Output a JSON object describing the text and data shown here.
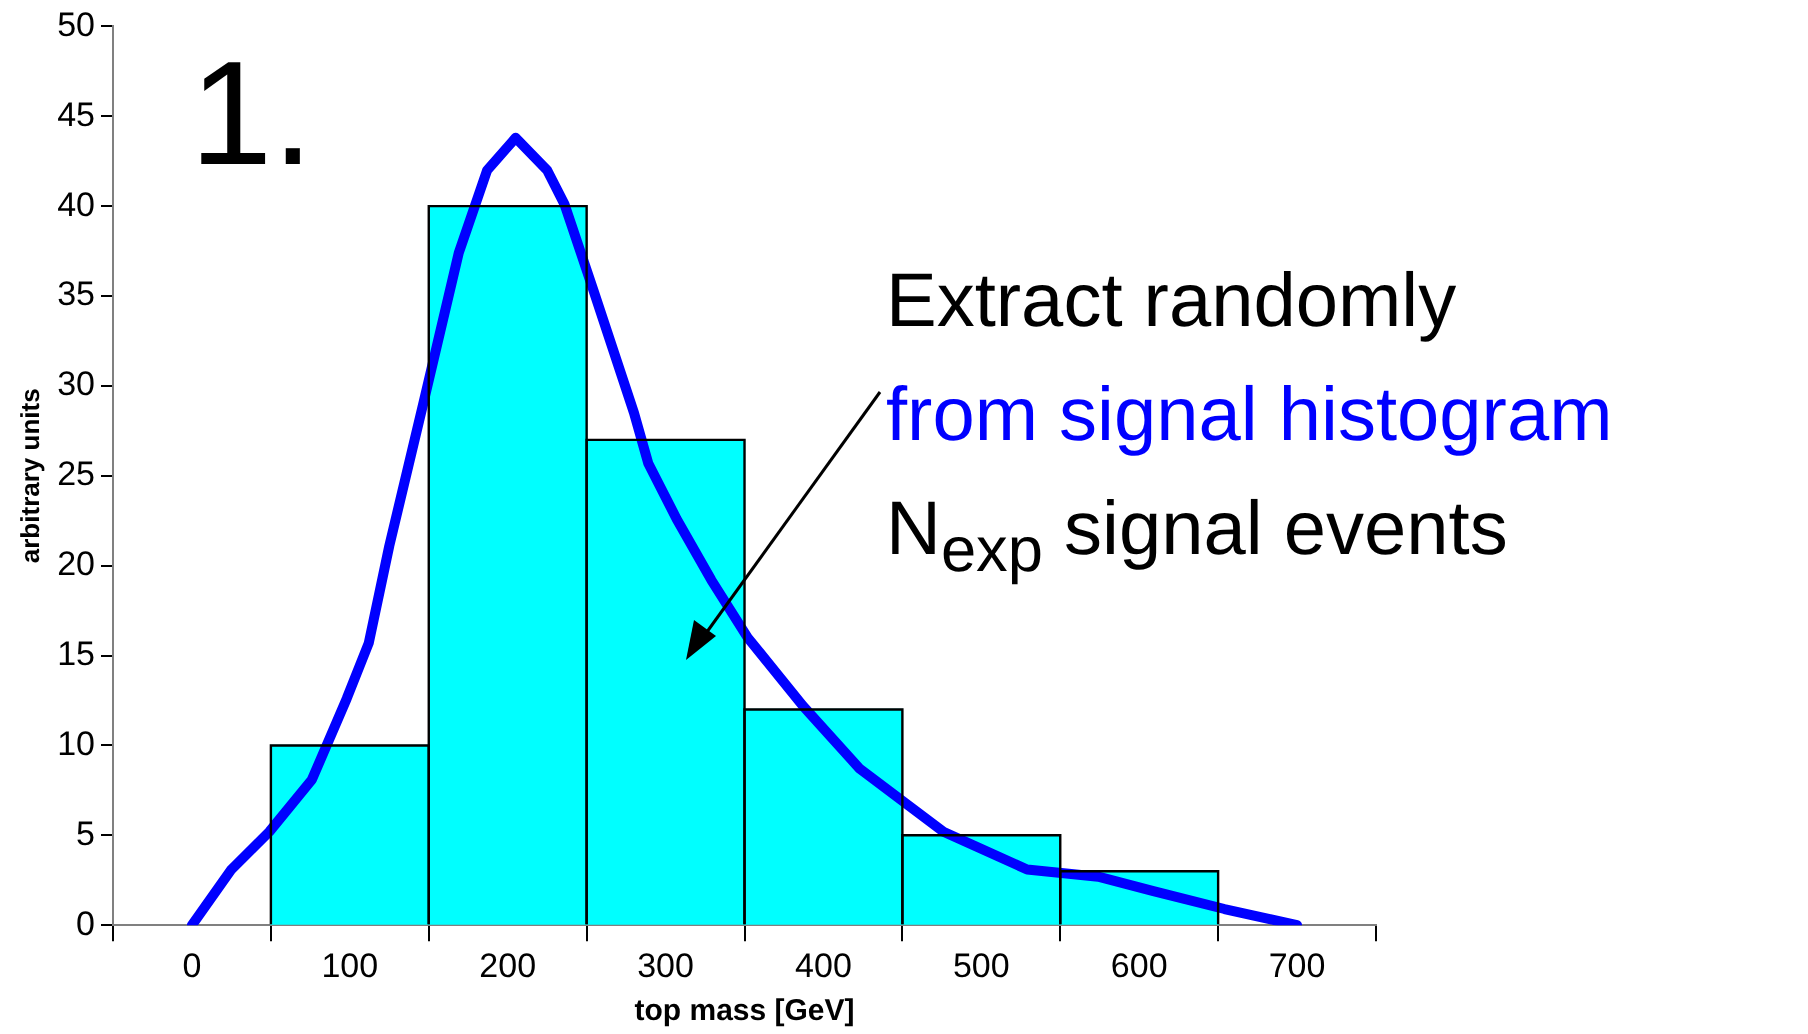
{
  "chart_data": {
    "type": "histogram",
    "xlabel": "top mass [GeV]",
    "ylabel": "arbitrary units",
    "bins": [
      50,
      150,
      250,
      350,
      450,
      550,
      650
    ],
    "values": [
      10,
      40,
      27,
      12,
      5,
      3
    ],
    "color": "#00ffff",
    "series": [
      {
        "type": "line",
        "color": "#0000ff",
        "x": [
          0,
          25,
          49,
          76,
          98,
          112,
          125,
          147,
          169,
          187,
          205,
          225,
          236,
          254,
          280,
          289,
          307,
          329,
          352,
          387,
          423,
          476,
          529,
          574,
          609,
          654,
          700
        ],
        "values": [
          0,
          3.1,
          5.2,
          8.1,
          12.6,
          15.7,
          21.1,
          29.2,
          37.4,
          42,
          43.8,
          42,
          40.1,
          35.4,
          28.5,
          25.7,
          22.6,
          19.2,
          16,
          12.2,
          8.7,
          5.2,
          3.1,
          2.7,
          1.9,
          0.9,
          0
        ]
      }
    ],
    "xlim": [
      -50,
      750
    ],
    "xticks": [
      0,
      100,
      200,
      300,
      400,
      500,
      600,
      700
    ],
    "ylim": [
      0,
      50
    ],
    "yticks": [
      0,
      5,
      10,
      15,
      20,
      25,
      30,
      35,
      40,
      45,
      50
    ],
    "legend": false,
    "marker": "none",
    "annotations": [
      "1.",
      "Extract randomly",
      "from signal histogram",
      "N$_{exp}$ signal events"
    ]
  }
}
